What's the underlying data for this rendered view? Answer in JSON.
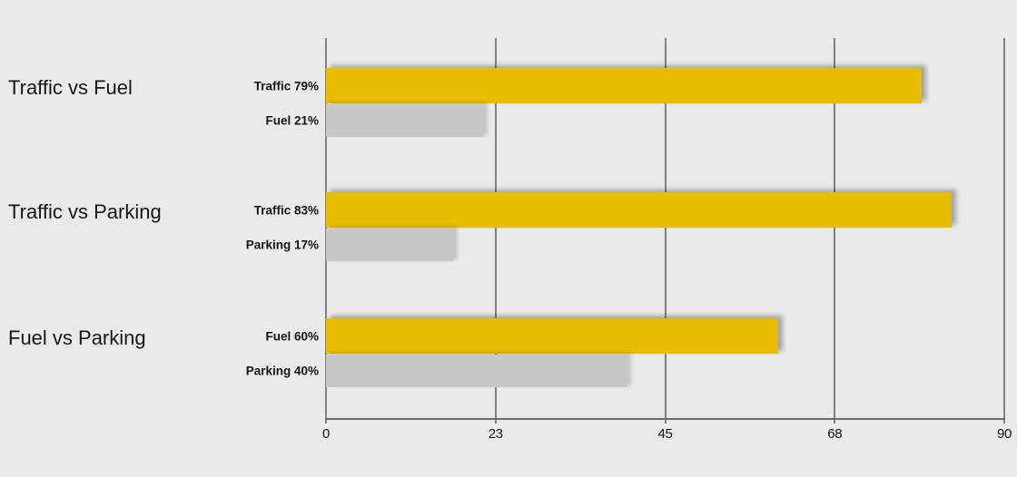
{
  "page": {
    "background": "#EAEAEA"
  },
  "chart_data": {
    "type": "bar",
    "orientation": "horizontal",
    "title": "",
    "xlabel": "",
    "ylabel": "",
    "x_axis": {
      "min": 0,
      "max": 90,
      "ticks": [
        "0",
        "23",
        "45",
        "68",
        "90"
      ],
      "grid": true
    },
    "groups": [
      {
        "title": "Traffic vs Fuel",
        "bars": [
          {
            "name": "Traffic",
            "value": 79,
            "label": "Traffic 79%",
            "role": "primary"
          },
          {
            "name": "Fuel",
            "value": 21,
            "label": "Fuel 21%",
            "role": "secondary"
          }
        ]
      },
      {
        "title": "Traffic vs Parking",
        "bars": [
          {
            "name": "Traffic",
            "value": 83,
            "label": "Traffic 83%",
            "role": "primary"
          },
          {
            "name": "Parking",
            "value": 17,
            "label": "Parking 17%",
            "role": "secondary"
          }
        ]
      },
      {
        "title": "Fuel vs Parking",
        "bars": [
          {
            "name": "Fuel",
            "value": 60,
            "label": "Fuel 60%",
            "role": "primary"
          },
          {
            "name": "Parking",
            "value": 40,
            "label": "Parking 40%",
            "role": "secondary"
          }
        ]
      }
    ],
    "colors": {
      "primary_bar": "#E8BC03",
      "secondary_bar": "#C7C7C5",
      "background": "#EAEAEA",
      "gridline": "#828282",
      "axis": "#6B6B6B",
      "text": "#141414"
    },
    "legend": null
  }
}
